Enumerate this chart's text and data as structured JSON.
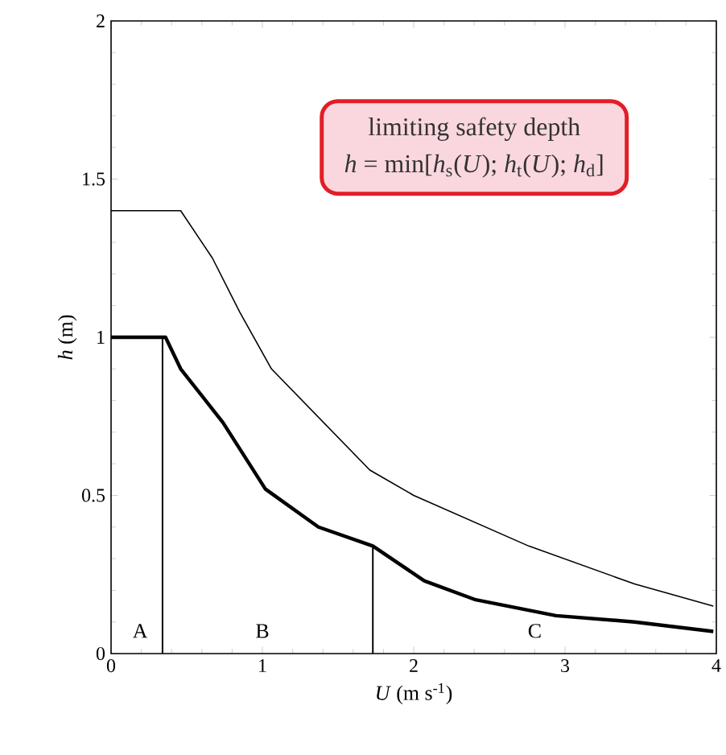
{
  "chart_data": {
    "type": "line",
    "xlabel": "*U* (m s$^{-1}$)",
    "ylabel": "*h* (m)",
    "xlim": [
      0,
      4
    ],
    "ylim": [
      0,
      2
    ],
    "xticks": [
      0,
      1,
      2,
      3,
      4
    ],
    "yticks": [
      0,
      0.5,
      1,
      1.5,
      2
    ],
    "grid": false,
    "marker": "none",
    "line_style": "solid",
    "series": [
      {
        "color": "#000000",
        "x": [
          0,
          0.44,
          0.46,
          0.67,
          0.85,
          1.06,
          1.71,
          2.0,
          2.76,
          3.46,
          3.98
        ],
        "values": [
          1.4,
          1.4,
          1.4,
          1.25,
          1.08,
          0.9,
          0.58,
          0.5,
          0.34,
          0.22,
          0.15
        ]
      },
      {
        "color": "#000000",
        "x": [
          0,
          0.36,
          0.46,
          0.74,
          1.02,
          1.37,
          1.73,
          2.07,
          2.41,
          2.94,
          3.46,
          3.98
        ],
        "values": [
          1.0,
          1.0,
          0.9,
          0.73,
          0.52,
          0.4,
          0.34,
          0.23,
          0.17,
          0.12,
          0.1,
          0.07
        ]
      },
      {
        "color": "#000000",
        "x": [
          0.34,
          0.34
        ],
        "values": [
          0,
          1.0
        ]
      },
      {
        "color": "#000000",
        "x": [
          1.73,
          1.73
        ],
        "values": [
          0,
          0.34
        ]
      }
    ],
    "annotations": [
      "limiting safety depth",
      "*h* = min[*h*$_{s}$(*U*); *h*$_{t}$(*U*); *h*$_{d}$]",
      "A",
      "B",
      "C"
    ]
  }
}
